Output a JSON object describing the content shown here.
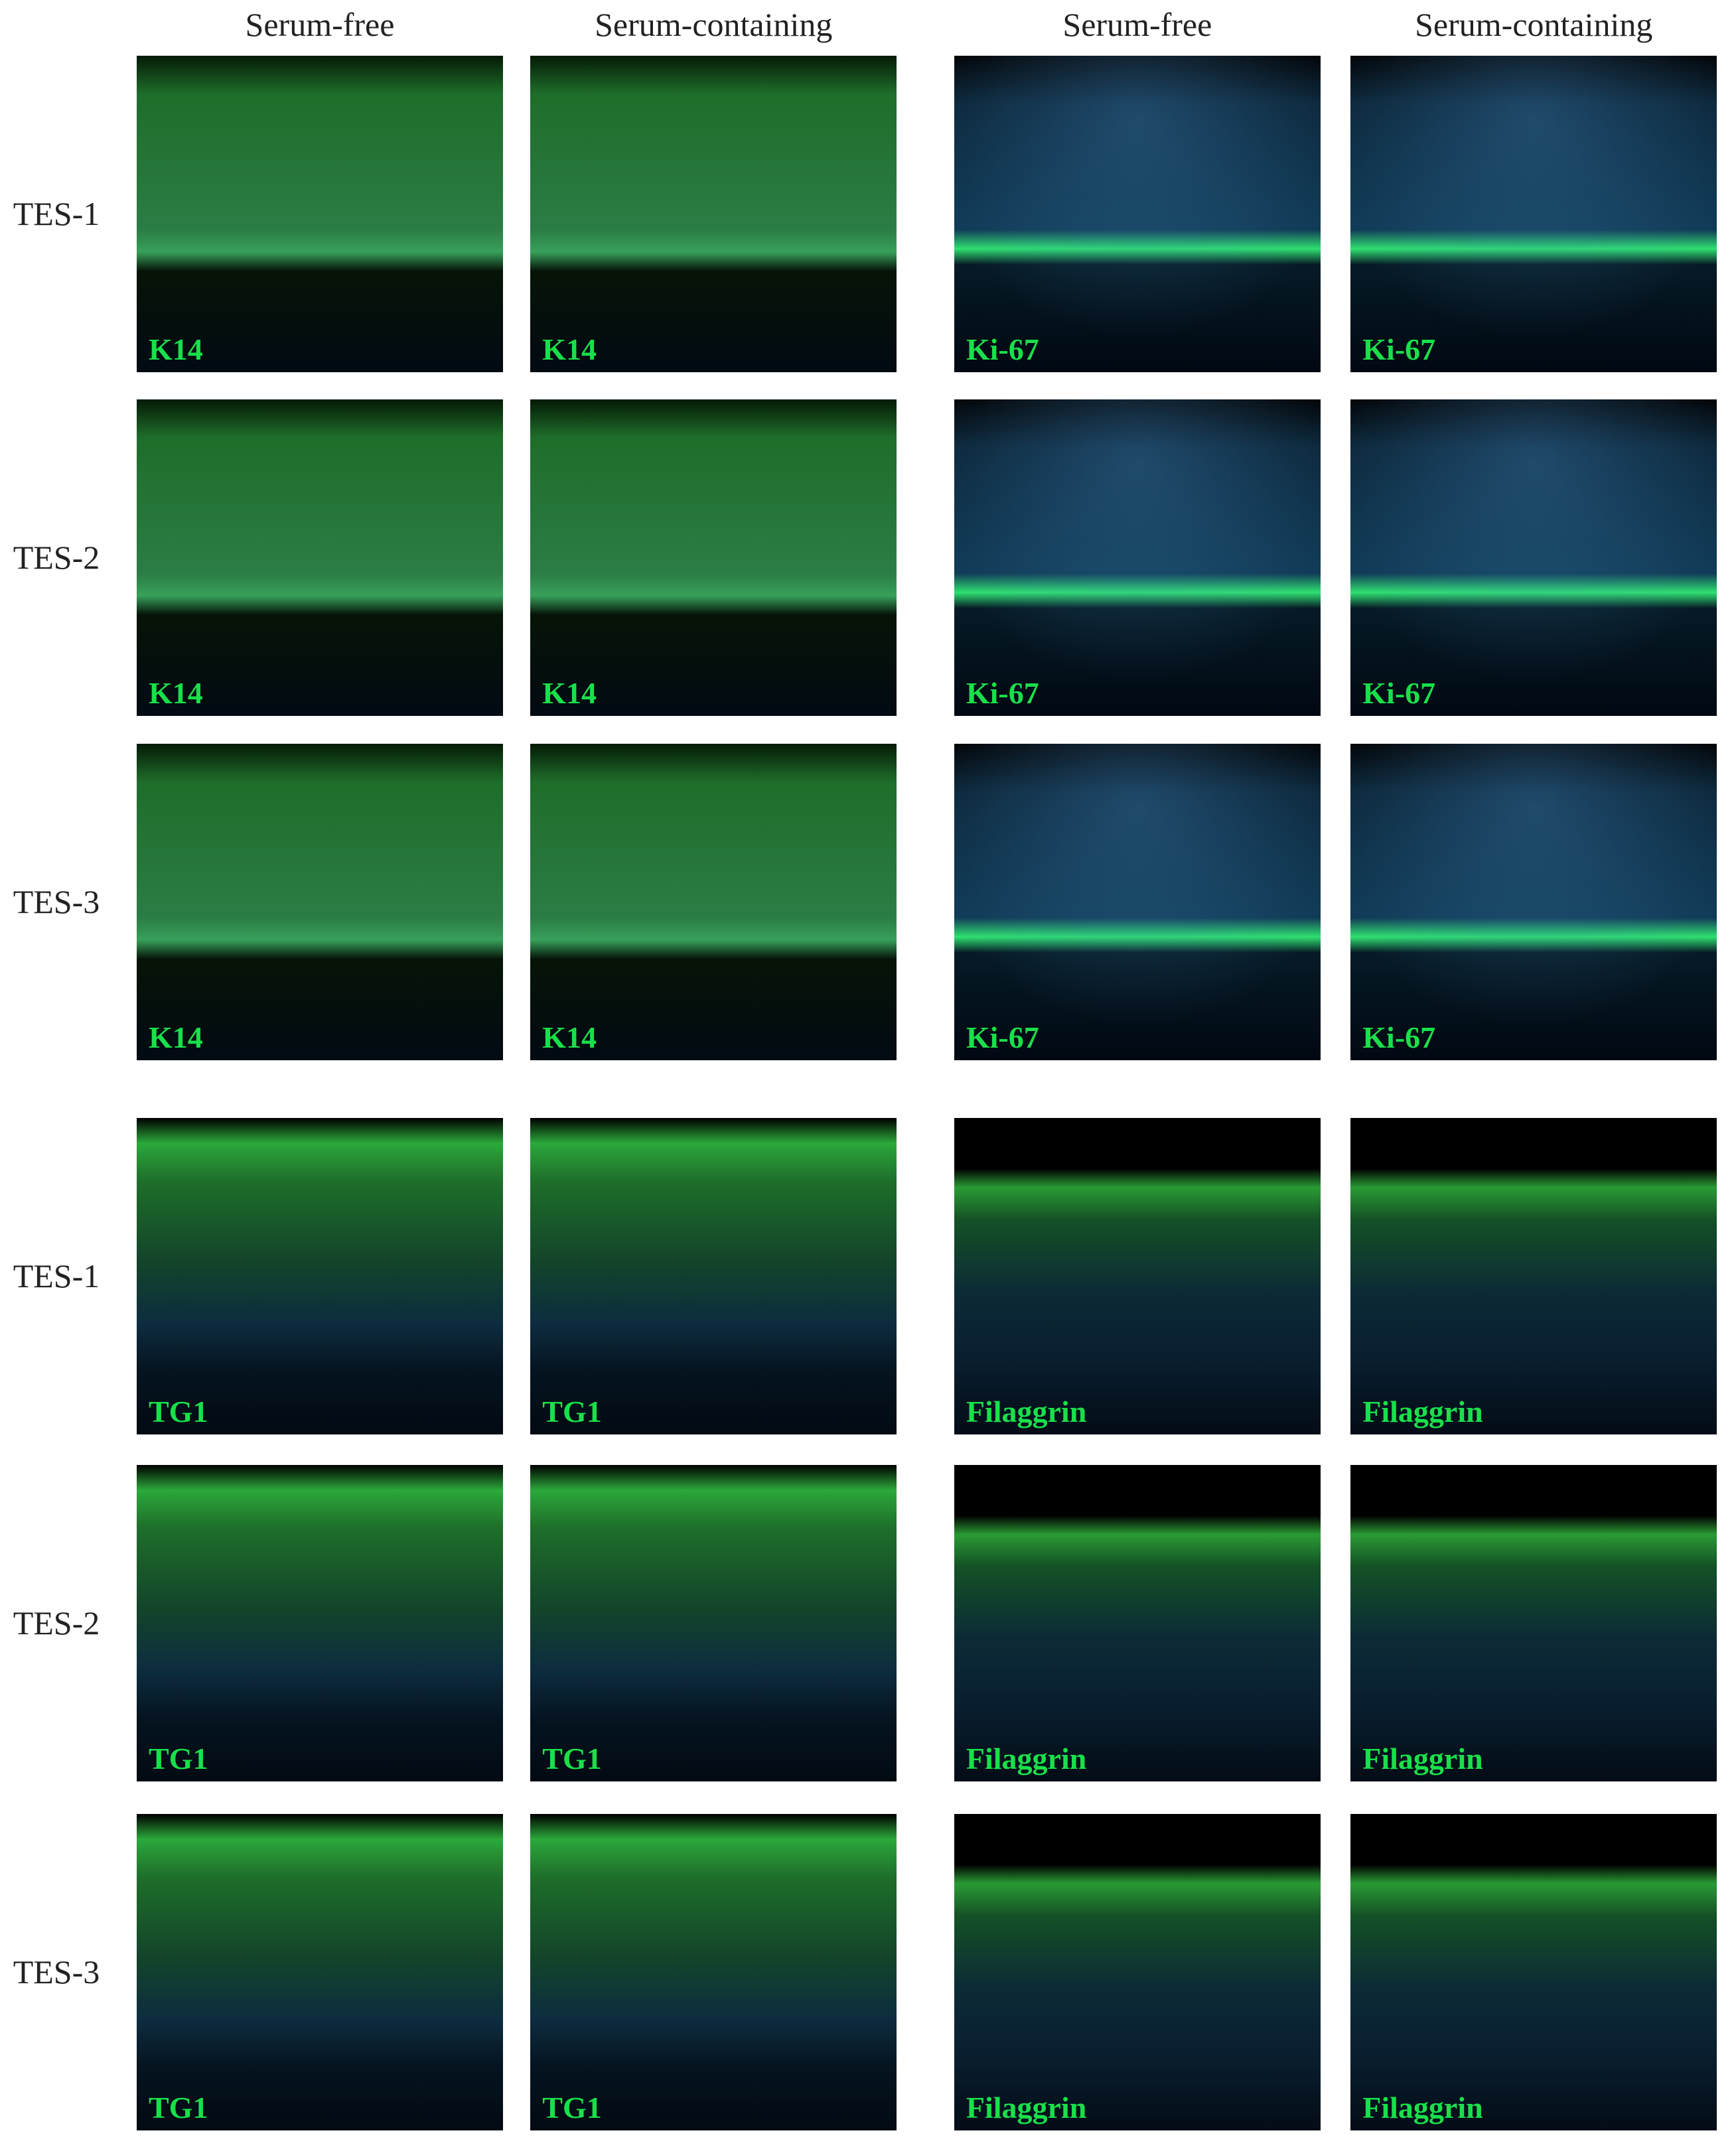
{
  "headers": [
    "Serum-free",
    "Serum-containing",
    "Serum-free",
    "Serum-containing"
  ],
  "row_labels": [
    "TES-1",
    "TES-2",
    "TES-3",
    "TES-1",
    "TES-2",
    "TES-3"
  ],
  "panels": [
    [
      "K14",
      "K14",
      "Ki-67",
      "Ki-67"
    ],
    [
      "K14",
      "K14",
      "Ki-67",
      "Ki-67"
    ],
    [
      "K14",
      "K14",
      "Ki-67",
      "Ki-67"
    ],
    [
      "TG1",
      "TG1",
      "Filaggrin",
      "Filaggrin"
    ],
    [
      "TG1",
      "TG1",
      "Filaggrin",
      "Filaggrin"
    ],
    [
      "TG1",
      "TG1",
      "Filaggrin",
      "Filaggrin"
    ]
  ]
}
